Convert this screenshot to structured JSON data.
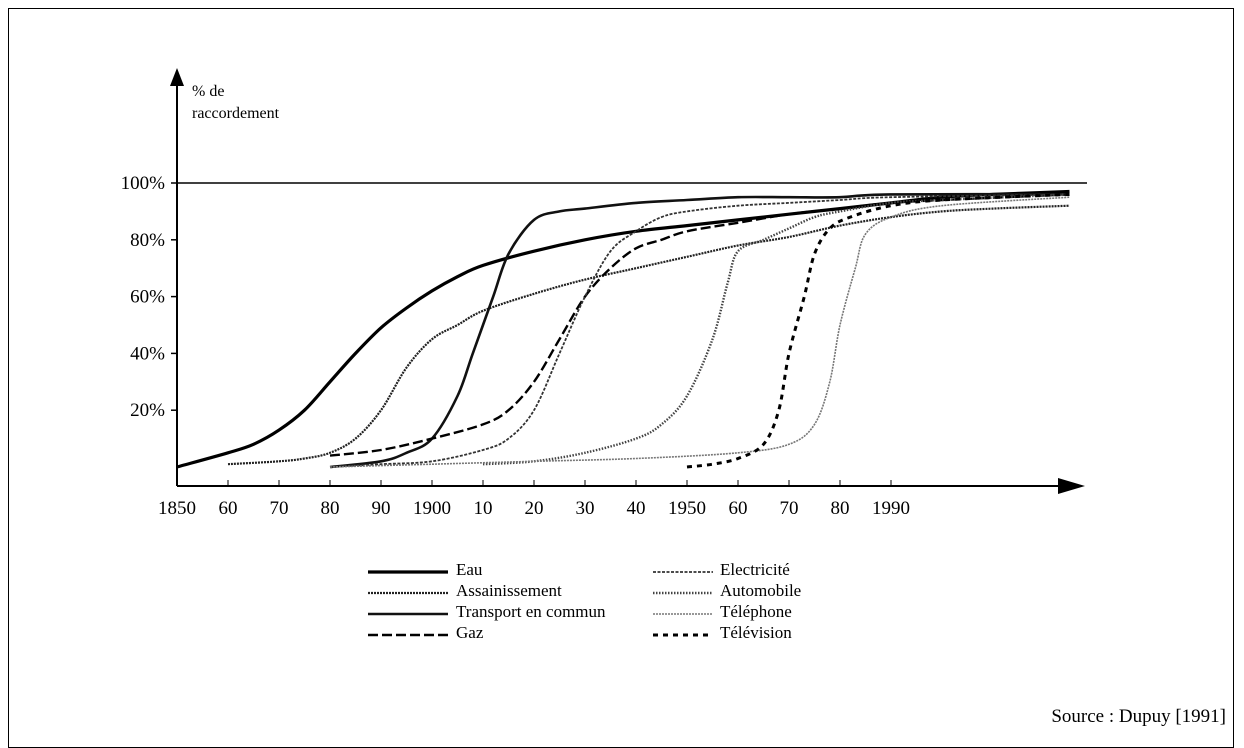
{
  "source": "Source : Dupuy [1991]",
  "chart_data": {
    "type": "line",
    "ylabel_line1": "% de",
    "ylabel_line2": "raccordement",
    "y_ticks": [
      {
        "label": "20%",
        "value": 20
      },
      {
        "label": "40%",
        "value": 40
      },
      {
        "label": "60%",
        "value": 60
      },
      {
        "label": "80%",
        "value": 80
      },
      {
        "label": "100%",
        "value": 100
      }
    ],
    "x_ticks": [
      {
        "label": "1850",
        "year": 1850
      },
      {
        "label": "60",
        "year": 1860
      },
      {
        "label": "70",
        "year": 1870
      },
      {
        "label": "80",
        "year": 1880
      },
      {
        "label": "90",
        "year": 1890
      },
      {
        "label": "1900",
        "year": 1900
      },
      {
        "label": "10",
        "year": 1910
      },
      {
        "label": "20",
        "year": 1920
      },
      {
        "label": "30",
        "year": 1930
      },
      {
        "label": "40",
        "year": 1940
      },
      {
        "label": "1950",
        "year": 1950
      },
      {
        "label": "60",
        "year": 1960
      },
      {
        "label": "70",
        "year": 1970
      },
      {
        "label": "80",
        "year": 1980
      },
      {
        "label": "1990",
        "year": 1990
      }
    ],
    "xlim": [
      1850,
      2025
    ],
    "ylim": [
      0,
      100
    ],
    "reference_line": 100,
    "legend_placement": "bottom",
    "series": [
      {
        "name": "Eau",
        "style": "thick",
        "color": "#000000",
        "points": [
          [
            1850,
            0
          ],
          [
            1860,
            5
          ],
          [
            1865,
            8
          ],
          [
            1870,
            13
          ],
          [
            1875,
            20
          ],
          [
            1880,
            30
          ],
          [
            1885,
            40
          ],
          [
            1890,
            49
          ],
          [
            1895,
            56
          ],
          [
            1900,
            62
          ],
          [
            1905,
            67
          ],
          [
            1910,
            71
          ],
          [
            1920,
            76
          ],
          [
            1930,
            80
          ],
          [
            1940,
            83
          ],
          [
            1950,
            85
          ],
          [
            1960,
            87
          ],
          [
            1970,
            89
          ],
          [
            1980,
            91
          ],
          [
            1990,
            93
          ],
          [
            2000,
            95
          ],
          [
            2010,
            96
          ],
          [
            2025,
            97
          ]
        ]
      },
      {
        "name": "Assainissement",
        "style": "fine-dot",
        "color": "#222222",
        "points": [
          [
            1860,
            1
          ],
          [
            1870,
            2
          ],
          [
            1875,
            3
          ],
          [
            1880,
            5
          ],
          [
            1885,
            10
          ],
          [
            1890,
            20
          ],
          [
            1895,
            35
          ],
          [
            1900,
            45
          ],
          [
            1905,
            50
          ],
          [
            1910,
            55
          ],
          [
            1920,
            61
          ],
          [
            1930,
            66
          ],
          [
            1940,
            70
          ],
          [
            1950,
            74
          ],
          [
            1960,
            78
          ],
          [
            1970,
            81
          ],
          [
            1980,
            85
          ],
          [
            1990,
            88
          ],
          [
            2000,
            90
          ],
          [
            2010,
            91
          ],
          [
            2025,
            92
          ]
        ]
      },
      {
        "name": "Transport en commun",
        "style": "medium",
        "color": "#111111",
        "points": [
          [
            1880,
            0
          ],
          [
            1890,
            2
          ],
          [
            1895,
            5
          ],
          [
            1900,
            10
          ],
          [
            1905,
            25
          ],
          [
            1908,
            40
          ],
          [
            1912,
            60
          ],
          [
            1915,
            75
          ],
          [
            1920,
            87
          ],
          [
            1925,
            90
          ],
          [
            1930,
            91
          ],
          [
            1940,
            93
          ],
          [
            1950,
            94
          ],
          [
            1960,
            95
          ],
          [
            1970,
            95
          ],
          [
            1980,
            95
          ],
          [
            1990,
            96
          ],
          [
            2025,
            96
          ]
        ]
      },
      {
        "name": "Gaz",
        "style": "dashed",
        "color": "#000000",
        "points": [
          [
            1880,
            4
          ],
          [
            1890,
            6
          ],
          [
            1900,
            10
          ],
          [
            1910,
            15
          ],
          [
            1915,
            20
          ],
          [
            1920,
            30
          ],
          [
            1925,
            45
          ],
          [
            1930,
            60
          ],
          [
            1935,
            70
          ],
          [
            1940,
            77
          ],
          [
            1945,
            80
          ],
          [
            1950,
            83
          ],
          [
            1960,
            86
          ],
          [
            1970,
            89
          ],
          [
            1980,
            91
          ],
          [
            1990,
            93
          ],
          [
            2000,
            94
          ],
          [
            2025,
            96
          ]
        ]
      },
      {
        "name": "Electricité",
        "style": "wavy",
        "color": "#333333",
        "points": [
          [
            1880,
            0
          ],
          [
            1890,
            1
          ],
          [
            1900,
            2
          ],
          [
            1910,
            6
          ],
          [
            1915,
            10
          ],
          [
            1920,
            20
          ],
          [
            1925,
            40
          ],
          [
            1930,
            60
          ],
          [
            1935,
            76
          ],
          [
            1940,
            83
          ],
          [
            1945,
            88
          ],
          [
            1950,
            90
          ],
          [
            1960,
            92
          ],
          [
            1970,
            93
          ],
          [
            1980,
            94
          ],
          [
            1990,
            95
          ],
          [
            2025,
            96
          ]
        ]
      },
      {
        "name": "Automobile",
        "style": "coarse-dot",
        "color": "#444444",
        "points": [
          [
            1910,
            1
          ],
          [
            1920,
            2
          ],
          [
            1930,
            5
          ],
          [
            1940,
            10
          ],
          [
            1945,
            15
          ],
          [
            1950,
            25
          ],
          [
            1955,
            45
          ],
          [
            1958,
            65
          ],
          [
            1960,
            76
          ],
          [
            1965,
            80
          ],
          [
            1970,
            84
          ],
          [
            1975,
            88
          ],
          [
            1980,
            90
          ],
          [
            1990,
            93
          ],
          [
            2000,
            94
          ],
          [
            2025,
            96
          ]
        ]
      },
      {
        "name": "Téléphone",
        "style": "thin-gray",
        "color": "#777777",
        "points": [
          [
            1880,
            0
          ],
          [
            1900,
            1
          ],
          [
            1920,
            2
          ],
          [
            1940,
            3
          ],
          [
            1960,
            5
          ],
          [
            1970,
            8
          ],
          [
            1975,
            15
          ],
          [
            1978,
            30
          ],
          [
            1980,
            50
          ],
          [
            1983,
            70
          ],
          [
            1985,
            82
          ],
          [
            1990,
            88
          ],
          [
            2000,
            92
          ],
          [
            2025,
            95
          ]
        ]
      },
      {
        "name": "Télévision",
        "style": "big-dash",
        "color": "#000000",
        "points": [
          [
            1950,
            0
          ],
          [
            1955,
            1
          ],
          [
            1960,
            3
          ],
          [
            1965,
            8
          ],
          [
            1968,
            20
          ],
          [
            1970,
            40
          ],
          [
            1973,
            60
          ],
          [
            1975,
            75
          ],
          [
            1978,
            84
          ],
          [
            1982,
            88
          ],
          [
            1990,
            92
          ],
          [
            2000,
            94
          ],
          [
            2025,
            96
          ]
        ]
      }
    ]
  }
}
